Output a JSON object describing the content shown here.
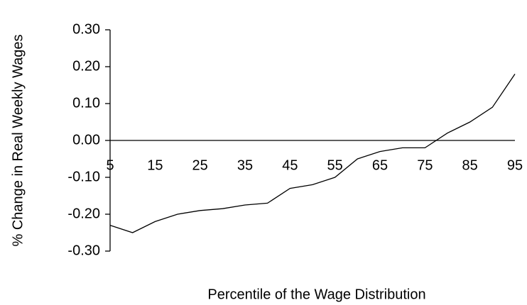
{
  "chart_data": {
    "type": "line",
    "x_label": "Percentile of the Wage Distribution",
    "y_label": "% Change in Real Weekly Wages",
    "x": [
      5,
      10,
      15,
      20,
      25,
      30,
      35,
      40,
      45,
      50,
      55,
      60,
      65,
      70,
      75,
      80,
      85,
      90,
      95
    ],
    "series": [
      {
        "color": "#000000",
        "values": [
          -0.23,
          -0.25,
          -0.22,
          -0.2,
          -0.19,
          -0.185,
          -0.175,
          -0.17,
          -0.13,
          -0.12,
          -0.1,
          -0.05,
          -0.03,
          -0.02,
          -0.02,
          0.02,
          0.05,
          0.09,
          0.18
        ]
      }
    ],
    "xlim": [
      5,
      95
    ],
    "xticks": [
      5,
      15,
      25,
      35,
      45,
      55,
      65,
      75,
      85,
      95
    ],
    "ylim": [
      -0.3,
      0.3
    ],
    "yticks": [
      {
        "value": -0.3,
        "label": "-0.30"
      },
      {
        "value": -0.2,
        "label": "-0.20"
      },
      {
        "value": -0.1,
        "label": "-0.10"
      },
      {
        "value": 0,
        "label": "0.00"
      },
      {
        "value": 0.1,
        "label": "0.10"
      },
      {
        "value": 0.2,
        "label": "0.20"
      },
      {
        "value": 0.3,
        "label": "0.30"
      }
    ]
  }
}
